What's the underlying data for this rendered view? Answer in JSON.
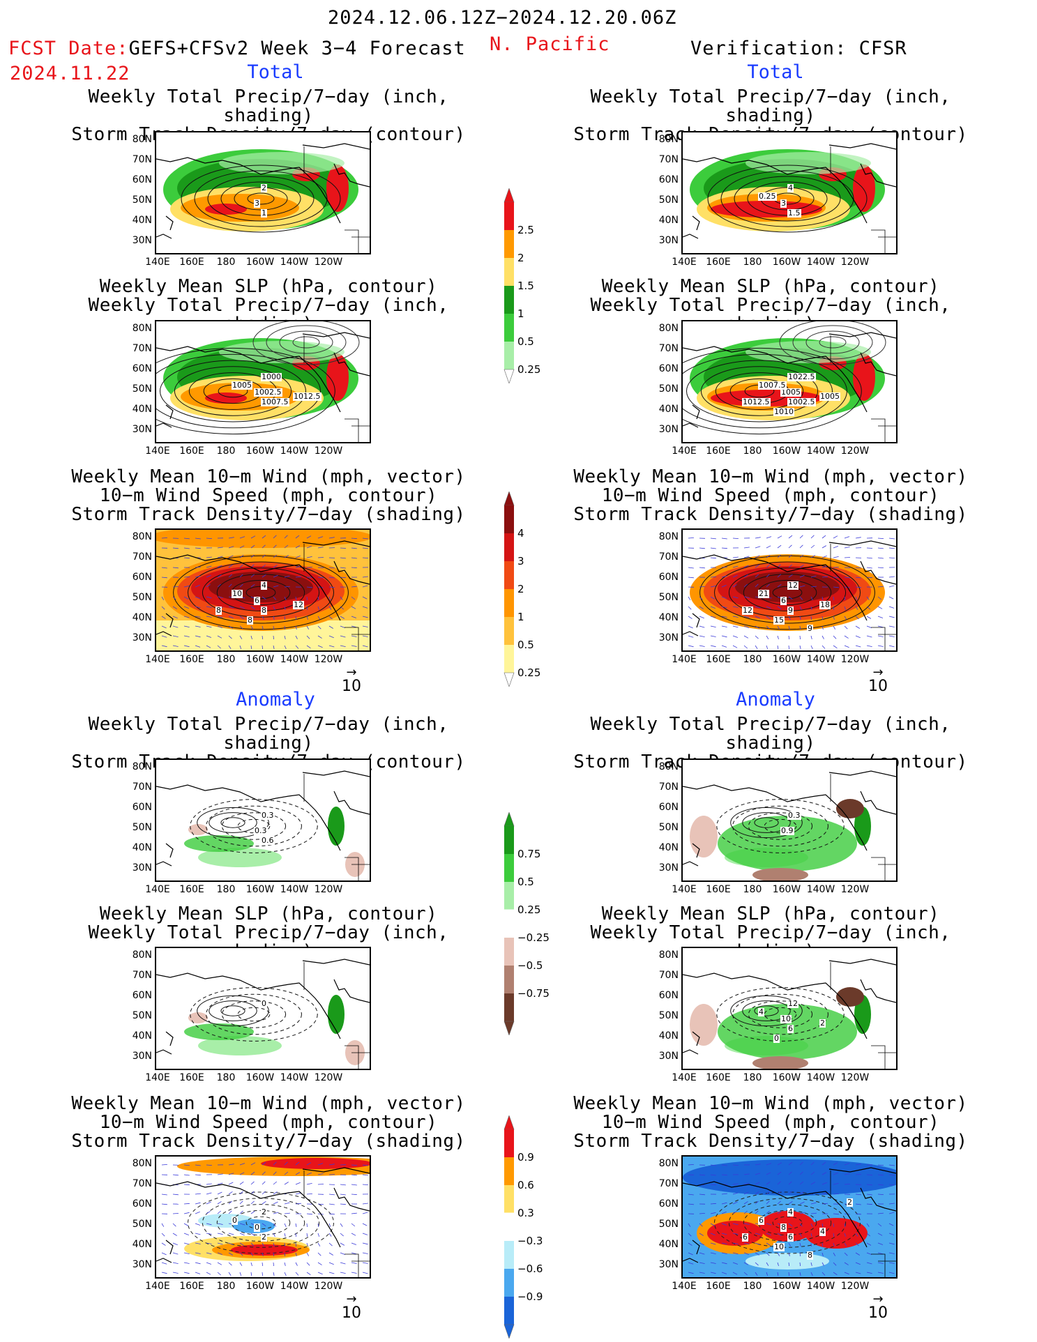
{
  "header": {
    "period": "2024.12.06.12Z−2024.12.20.06Z",
    "fcst_date_label": "FCST Date:",
    "model": "GEFS+CFSv2 Week 3−4 Forecast",
    "fcst_date": "2024.11.22",
    "region": "N. Pacific",
    "verification": "Verification: CFSR"
  },
  "sections": {
    "total": "Total",
    "anomaly": "Anomaly"
  },
  "titles": {
    "precip_storm": [
      "Weekly Total Precip/7−day (inch, shading)",
      "Storm Track Density/7−day (contour)"
    ],
    "slp_precip": [
      "Weekly Mean SLP (hPa, contour)",
      "Weekly Total Precip/7−day (inch, shading)"
    ],
    "wind_storm": [
      "Weekly Mean 10−m Wind (mph, vector)",
      "10−m Wind Speed (mph, contour)",
      "Storm Track Density/7−day (shading)"
    ]
  },
  "axes": {
    "lat_labels": [
      "80N",
      "70N",
      "60N",
      "50N",
      "40N",
      "30N"
    ],
    "lon_labels": [
      "140E",
      "160E",
      "180",
      "160W",
      "140W",
      "120W"
    ]
  },
  "vector_ref": "10",
  "colorbars": {
    "precip_total": {
      "labels": [
        "2.5",
        "2",
        "1.5",
        "1",
        "0.5",
        "0.25"
      ],
      "colors": [
        "#e8141a",
        "#ff9900",
        "#ffe066",
        "#1a9a1a",
        "#3ccc3c",
        "#a8eea8"
      ]
    },
    "storm_total": {
      "labels": [
        "4",
        "3",
        "2",
        "1",
        "0.5",
        "0.25"
      ],
      "colors": [
        "#8b0f0f",
        "#d41414",
        "#f04a14",
        "#ff9500",
        "#ffc23c",
        "#fff59a"
      ]
    },
    "precip_anom": {
      "labels": [
        "0.75",
        "0.5",
        "0.25",
        "−0.25",
        "−0.5",
        "−0.75"
      ],
      "colors": [
        "#1a9a1a",
        "#3ccc3c",
        "#a8eea8",
        "#ffffff",
        "#e8c3b8",
        "#b08070",
        "#6b3a2a"
      ]
    },
    "storm_anom": {
      "labels": [
        "0.9",
        "0.6",
        "0.3",
        "−0.3",
        "−0.6",
        "−0.9"
      ],
      "colors": [
        "#e8141a",
        "#ff9900",
        "#ffe066",
        "#ffffff",
        "#b8ecf8",
        "#4aa8ef",
        "#1a64d8"
      ]
    }
  },
  "map_labels": {
    "f_total_precip": [
      "2",
      "3",
      "1"
    ],
    "v_total_precip": [
      "4",
      "3",
      "1.5",
      "0.25"
    ],
    "f_total_slp": [
      "1000",
      "1002.5",
      "1007.5",
      "1005",
      "1012.5"
    ],
    "v_total_slp": [
      "1022.5",
      "1005",
      "1002.5",
      "1007.5",
      "1005",
      "1010",
      "1012.5"
    ],
    "f_total_wind": [
      "4",
      "6",
      "8",
      "10",
      "12",
      "8",
      "8"
    ],
    "v_total_wind": [
      "12",
      "6",
      "9",
      "21",
      "18",
      "15",
      "12",
      "9"
    ],
    "f_anom_precip": [
      "0.3",
      "0.3",
      "0.6"
    ],
    "v_anom_precip": [
      "0.3",
      "0.9"
    ],
    "f_anom_slp": [
      "0"
    ],
    "v_anom_slp": [
      "12",
      "10",
      "6",
      "4",
      "2",
      "0"
    ],
    "f_anom_wind": [
      "2",
      "0",
      "2",
      "0"
    ],
    "v_anom_wind": [
      "4",
      "8",
      "6",
      "6",
      "4",
      "10",
      "6",
      "8",
      "2"
    ]
  }
}
